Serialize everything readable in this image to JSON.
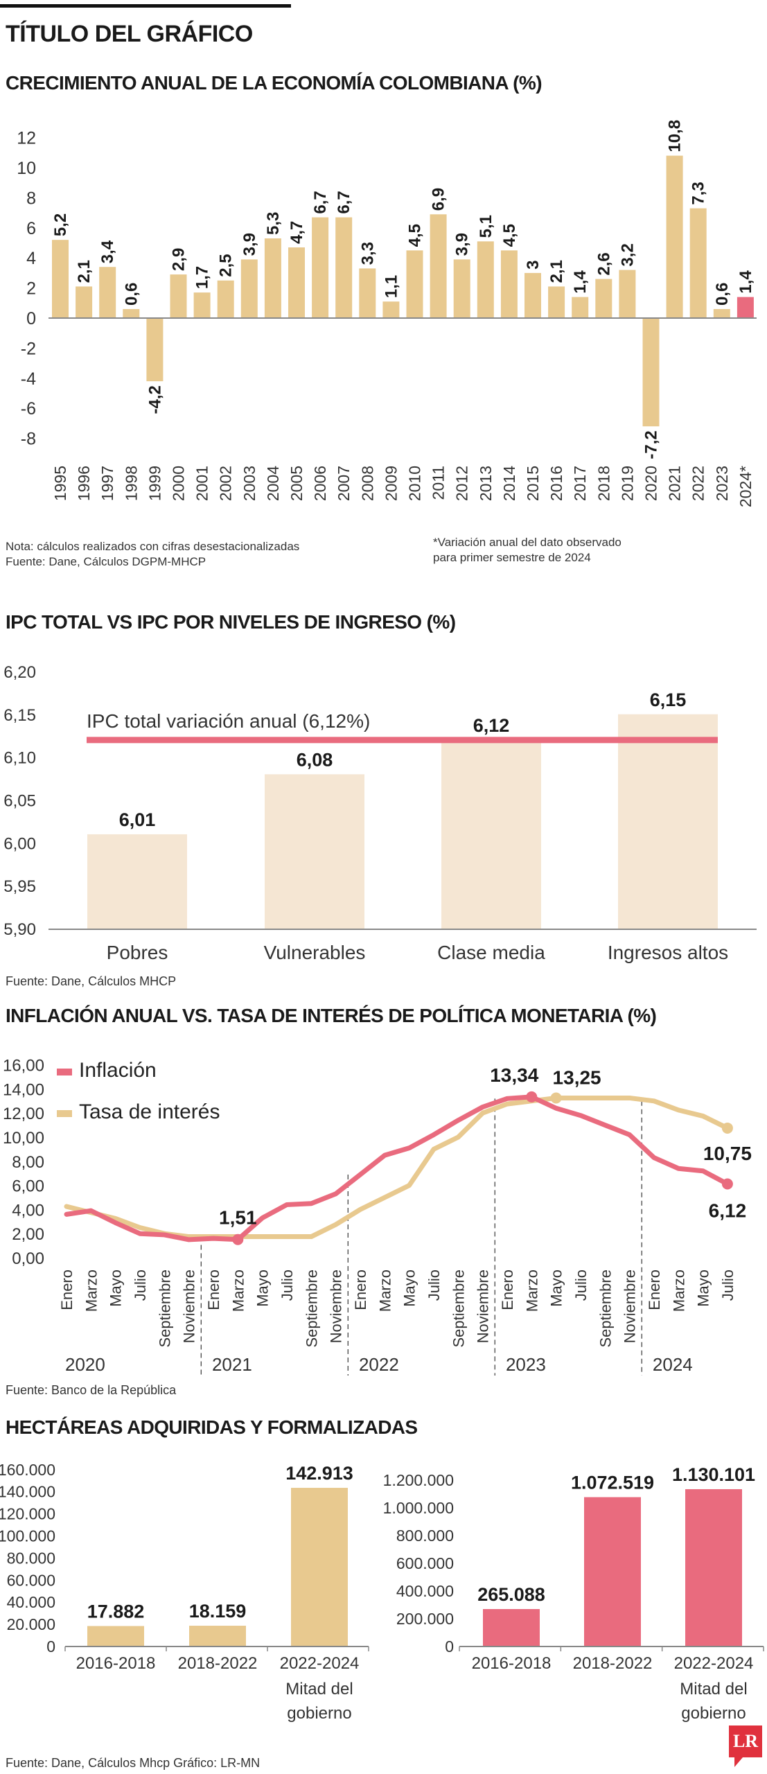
{
  "header": {
    "title": "TÍTULO DEL GRÁFICO"
  },
  "colors": {
    "tan": "#e8c98f",
    "pink": "#e96b7e",
    "beige": "#f5e6d3",
    "axis": "#888888"
  },
  "chart_data": [
    {
      "type": "bar",
      "title": "CRECIMIENTO ANUAL DE LA ECONOMÍA COLOMBIANA (%)",
      "categories": [
        "1995",
        "1996",
        "1997",
        "1998",
        "1999",
        "2000",
        "2001",
        "2002",
        "2003",
        "2004",
        "2005",
        "2006",
        "2007",
        "2008",
        "2009",
        "2010",
        "2011",
        "2012",
        "2013",
        "2014",
        "2015",
        "2016",
        "2017",
        "2018",
        "2019",
        "2020",
        "2021",
        "2022",
        "2023",
        "2024*"
      ],
      "values": [
        5.2,
        2.1,
        3.4,
        0.6,
        -4.2,
        2.9,
        1.7,
        2.5,
        3.9,
        5.3,
        4.7,
        6.7,
        6.7,
        3.3,
        1.1,
        4.5,
        6.9,
        3.9,
        5.1,
        4.5,
        3,
        2.1,
        1.4,
        2.6,
        3.2,
        -7.2,
        10.8,
        7.3,
        0.6,
        1.4
      ],
      "value_labels": [
        "5,2",
        "2,1",
        "3,4",
        "0,6",
        "-4,2",
        "2,9",
        "1,7",
        "2,5",
        "3,9",
        "5,3",
        "4,7",
        "6,7",
        "6,7",
        "3,3",
        "1,1",
        "4,5",
        "6,9",
        "3,9",
        "5,1",
        "4,5",
        "3",
        "2,1",
        "1,4",
        "2,6",
        "3,2",
        "-7,2",
        "10,8",
        "7,3",
        "0,6",
        "1,4"
      ],
      "highlight_category": "2024*",
      "yticks": [
        12,
        10,
        8,
        6,
        4,
        2,
        0,
        -2,
        -4,
        -6,
        -8
      ],
      "ytick_labels": [
        "12",
        "10",
        "8",
        "6",
        "4",
        "2",
        "0",
        "-2",
        "-4",
        "-6",
        "-8"
      ],
      "ylim": [
        -8,
        12
      ],
      "grid": false,
      "notes": {
        "left": [
          "Nota: cálculos realizados con cifras desestacionalizadas",
          "Fuente: Dane, Cálculos DGPM-MHCP"
        ],
        "right": [
          "*Variación anual del dato observado",
          "para primer semestre de 2024"
        ]
      }
    },
    {
      "type": "bar",
      "title": "IPC TOTAL VS IPC POR NIVELES DE INGRESO (%)",
      "categories": [
        "Pobres",
        "Vulnerables",
        "Clase media",
        "Ingresos altos"
      ],
      "values": [
        6.01,
        6.08,
        6.12,
        6.15
      ],
      "value_labels": [
        "6,01",
        "6,08",
        "6,12",
        "6,15"
      ],
      "reference_line": {
        "value": 6.12,
        "label": "IPC total variación anual (6,12%)"
      },
      "yticks": [
        6.2,
        6.15,
        6.1,
        6.05,
        6.0,
        5.95,
        5.9
      ],
      "ytick_labels": [
        "6,20",
        "6,15",
        "6,10",
        "6,05",
        "6,00",
        "5,95",
        "5,90"
      ],
      "ylim": [
        5.9,
        6.2
      ],
      "grid": false,
      "source": "Fuente: Dane, Cálculos MHCP"
    },
    {
      "type": "line",
      "title": "INFLACIÓN ANUAL VS. TASA DE INTERÉS DE POLÍTICA MONETARIA (%)",
      "categories": [
        "Enero",
        "Marzo",
        "Mayo",
        "Julio",
        "Septiembre",
        "Noviembre",
        "Enero",
        "Marzo",
        "Mayo",
        "Julio",
        "Septiembre",
        "Noviembre",
        "Enero",
        "Marzo",
        "Mayo",
        "Julio",
        "Septiembre",
        "Noviembre",
        "Enero",
        "Marzo",
        "Mayo",
        "Julio",
        "Septiembre",
        "Noviembre",
        "Enero",
        "Marzo",
        "Mayo",
        "Julio"
      ],
      "years": [
        "2020",
        "2021",
        "2022",
        "2023",
        "2024"
      ],
      "series": [
        {
          "name": "Inflación",
          "color": "#e96b7e",
          "values": [
            3.6,
            3.9,
            2.9,
            2.0,
            1.9,
            1.5,
            1.6,
            1.51,
            3.3,
            4.4,
            4.5,
            5.3,
            6.9,
            8.5,
            9.1,
            10.2,
            11.4,
            12.5,
            13.2,
            13.34,
            12.4,
            11.8,
            11.0,
            10.2,
            8.3,
            7.4,
            7.2,
            6.12
          ],
          "annotations": [
            {
              "index": 7,
              "label": "1,51"
            },
            {
              "index": 19,
              "label": "13,34"
            },
            {
              "index": 27,
              "label": "6,12"
            }
          ]
        },
        {
          "name": "Tasa de interés",
          "color": "#e8c98f",
          "values": [
            4.25,
            3.75,
            3.25,
            2.5,
            2.0,
            1.75,
            1.75,
            1.75,
            1.75,
            1.75,
            1.75,
            2.75,
            4.0,
            5.0,
            6.0,
            9.0,
            10.0,
            12.0,
            12.75,
            13.0,
            13.25,
            13.25,
            13.25,
            13.25,
            13.0,
            12.25,
            11.75,
            10.75
          ],
          "annotations": [
            {
              "index": 20,
              "label": "13,25"
            },
            {
              "index": 27,
              "label": "10,75"
            }
          ]
        }
      ],
      "yticks": [
        16,
        14,
        12,
        10,
        8,
        6,
        4,
        2,
        0
      ],
      "ytick_labels": [
        "16,00",
        "14,00",
        "12,00",
        "10,00",
        "8,00",
        "6,00",
        "4,00",
        "2,00",
        "0,00"
      ],
      "ylim": [
        0,
        16
      ],
      "legend": "top-left",
      "grid": false,
      "source": "Fuente: Banco de la República"
    },
    {
      "type": "bar",
      "title": "HECTÁREAS ADQUIRIDAS Y FORMALIZADAS",
      "panels": [
        {
          "categories": [
            "2016-2018",
            "2018-2022",
            "2022-2024"
          ],
          "category_sublabel": [
            "Mitad del",
            "gobierno"
          ],
          "values": [
            17882,
            18159,
            142913
          ],
          "value_labels": [
            "17.882",
            "18.159",
            "142.913"
          ],
          "color": "#e8c98f",
          "yticks": [
            160000,
            140000,
            120000,
            100000,
            80000,
            60000,
            40000,
            20000,
            0
          ],
          "ytick_labels": [
            "160.000",
            "140.000",
            "120.000",
            "100.000",
            "80.000",
            "60.000",
            "40.000",
            "20.000",
            "0"
          ],
          "ylim": [
            0,
            160000
          ]
        },
        {
          "categories": [
            "2016-2018",
            "2018-2022",
            "2022-2024"
          ],
          "category_sublabel": [
            "Mitad del",
            "gobierno"
          ],
          "values": [
            265088,
            1072519,
            1130101
          ],
          "value_labels": [
            "265.088",
            "1.072.519",
            "1.130.101"
          ],
          "color": "#e96b7e",
          "yticks": [
            1200000,
            1000000,
            800000,
            600000,
            400000,
            200000,
            0
          ],
          "ytick_labels": [
            "1.200.000",
            "1.000.000",
            "800.000",
            "600.000",
            "400.000",
            "200.000",
            "0"
          ],
          "ylim": [
            0,
            1200000
          ]
        }
      ],
      "source": "Fuente: Dane, Cálculos Mhcp   Gráfico: LR-MN"
    }
  ],
  "logo": {
    "text": "LR"
  }
}
